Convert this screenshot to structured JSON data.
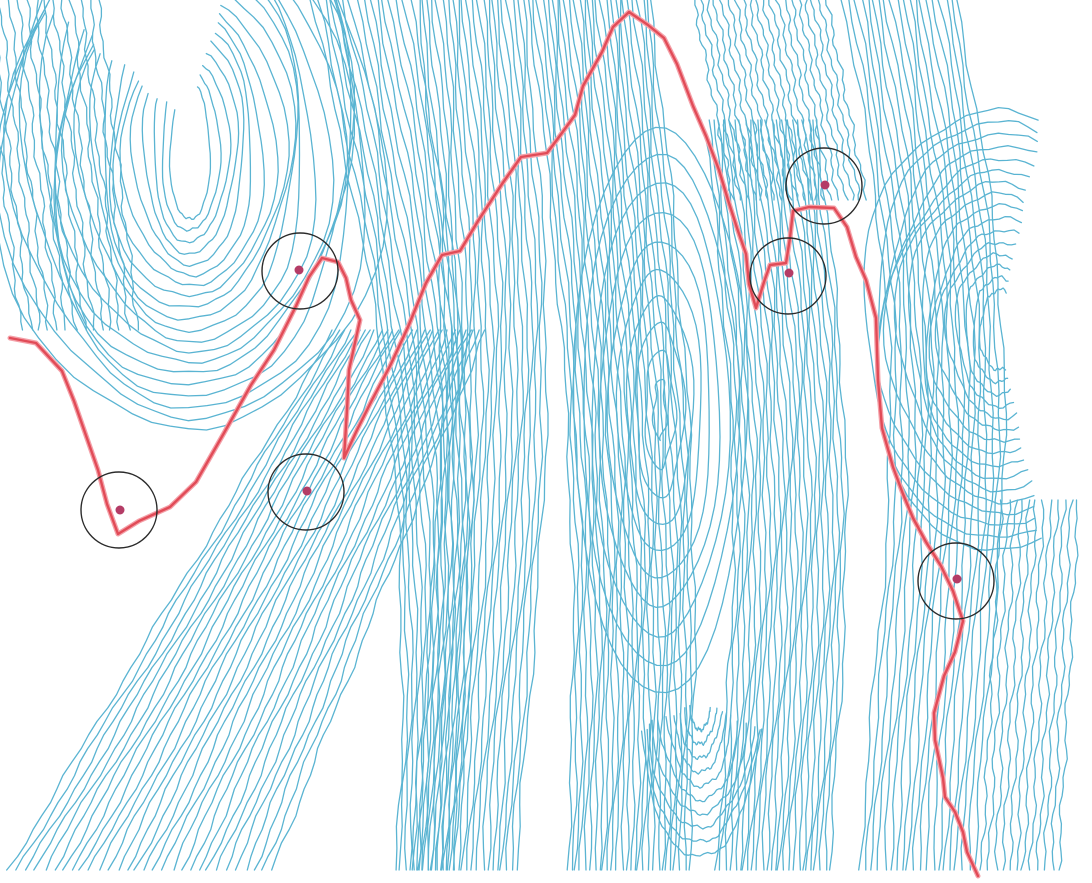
{
  "map": {
    "colors": {
      "background": "#ffffff",
      "contour": "#5ab4d2",
      "route": "#e14b57",
      "route_edge": "#f4a0a8",
      "circle": "#2a2a2a",
      "point": "#b43c66"
    },
    "layers": {
      "contours": "contour-lines",
      "route": "red-route",
      "markers": "circled-points"
    },
    "marker_count": 6
  }
}
